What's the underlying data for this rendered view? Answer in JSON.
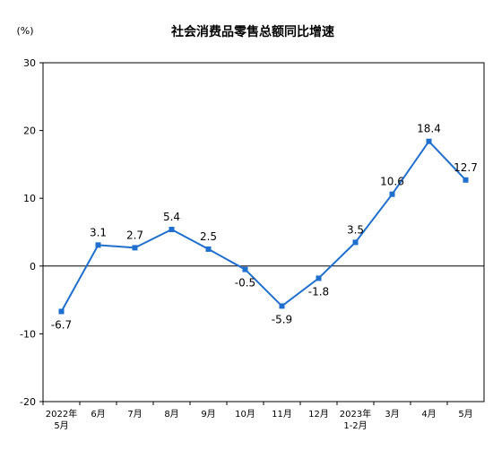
{
  "chart_data": {
    "type": "line",
    "title": "社会消费品零售总额同比增速",
    "unit_label": "(%)",
    "ylim": [
      -20,
      30
    ],
    "yticks": [
      "30",
      "20",
      "10",
      "0",
      "-10",
      "-20"
    ],
    "ytick_values": [
      30,
      20,
      10,
      0,
      -10,
      -20
    ],
    "categories": [
      "2022年 5月",
      "6月",
      "7月",
      "8月",
      "9月",
      "10月",
      "11月",
      "12月",
      "2023年 1-2月",
      "3月",
      "4月",
      "5月"
    ],
    "category_lines": [
      [
        "2022年",
        "5月"
      ],
      [
        "6月"
      ],
      [
        "7月"
      ],
      [
        "8月"
      ],
      [
        "9月"
      ],
      [
        "10月"
      ],
      [
        "11月"
      ],
      [
        "12月"
      ],
      [
        "2023年",
        "1-2月"
      ],
      [
        "3月"
      ],
      [
        "4月"
      ],
      [
        "5月"
      ]
    ],
    "values": [
      -6.7,
      3.1,
      2.7,
      5.4,
      2.5,
      -0.5,
      -5.9,
      -1.8,
      3.5,
      10.6,
      18.4,
      12.7
    ],
    "value_labels": [
      "-6.7",
      "3.1",
      "2.7",
      "5.4",
      "2.5",
      "-0.5",
      "-5.9",
      "-1.8",
      "3.5",
      "10.6",
      "18.4",
      "12.7"
    ],
    "line_color": "#1f6fce",
    "grid": false
  }
}
